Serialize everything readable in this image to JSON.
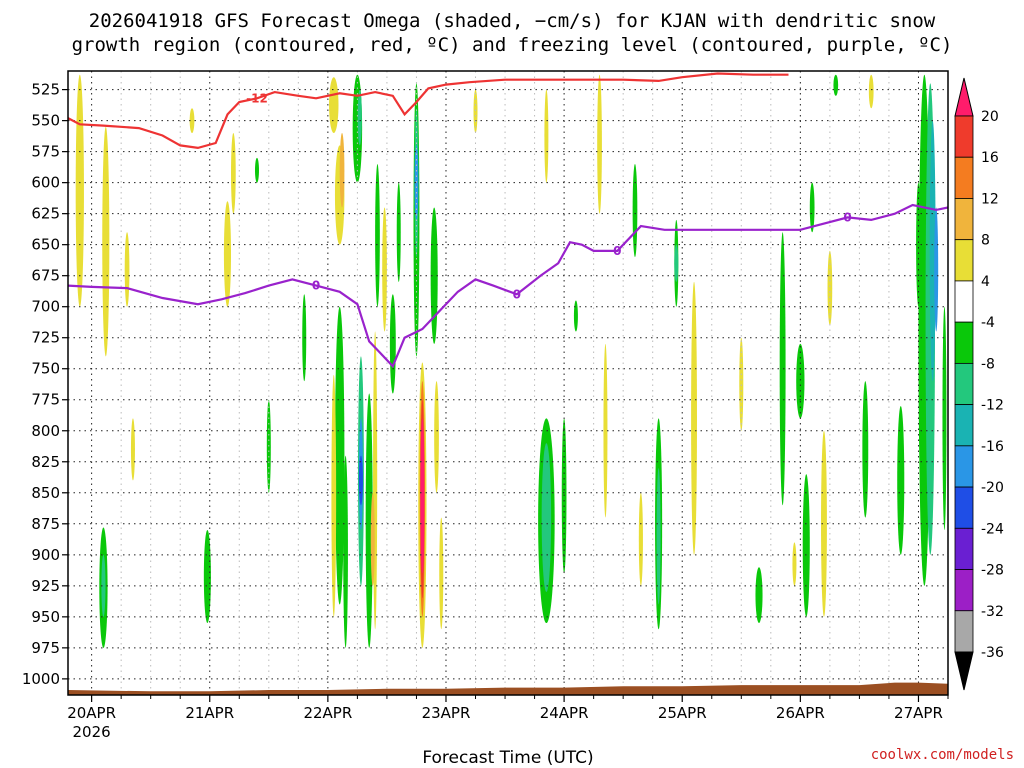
{
  "chart_data": {
    "type": "heatmap",
    "title_lines": [
      "2026041918 GFS Forecast Omega (shaded, −cm/s) for KJAN with dendritic snow",
      "growth region (contoured, red, ºC) and freezing level (contoured, purple, ºC)"
    ],
    "xlabel": "Forecast Time (UTC)",
    "x_ticks": [
      "20APR",
      "21APR",
      "22APR",
      "23APR",
      "24APR",
      "25APR",
      "26APR",
      "27APR"
    ],
    "x_sublabel": "2026",
    "x_range_days": [
      -0.2,
      7.25
    ],
    "y_ticks": [
      525,
      550,
      575,
      600,
      625,
      650,
      675,
      700,
      725,
      750,
      775,
      800,
      825,
      850,
      875,
      900,
      925,
      950,
      975,
      1000
    ],
    "y_range": [
      510,
      1013
    ],
    "y_inverted": true,
    "grid": true,
    "colorbar": {
      "labels": [
        20,
        16,
        12,
        8,
        4,
        -4,
        -8,
        -12,
        -16,
        -20,
        -24,
        -28,
        -32,
        -36
      ],
      "colors": [
        "#ff1c6b",
        "#ef3b2c",
        "#f47c20",
        "#f0b43c",
        "#e8de36",
        "#ffffff",
        "#0ac80a",
        "#23c87d",
        "#1ab3b3",
        "#2a96e6",
        "#1f4ee6",
        "#6a1fd2",
        "#9c1fc6",
        "#a8a8a8",
        "#000000"
      ]
    },
    "contours": [
      {
        "label": "-12",
        "color": "#ee3333",
        "points": [
          [
            -0.2,
            548
          ],
          [
            -0.1,
            553
          ],
          [
            0.1,
            554
          ],
          [
            0.4,
            556
          ],
          [
            0.6,
            562
          ],
          [
            0.75,
            570
          ],
          [
            0.9,
            572
          ],
          [
            1.05,
            568
          ],
          [
            1.15,
            545
          ],
          [
            1.25,
            535
          ],
          [
            1.4,
            532
          ],
          [
            1.55,
            527
          ],
          [
            1.75,
            530
          ],
          [
            1.9,
            532
          ],
          [
            2.1,
            528
          ],
          [
            2.25,
            530
          ],
          [
            2.4,
            527
          ],
          [
            2.55,
            530
          ],
          [
            2.65,
            545
          ],
          [
            2.75,
            535
          ],
          [
            2.85,
            524
          ],
          [
            3.0,
            521
          ],
          [
            3.2,
            519
          ],
          [
            3.5,
            517
          ],
          [
            3.8,
            517
          ],
          [
            4.2,
            517
          ],
          [
            4.5,
            517
          ],
          [
            4.8,
            518
          ],
          [
            5.0,
            515
          ],
          [
            5.3,
            512
          ],
          [
            5.6,
            513
          ],
          [
            5.9,
            513
          ]
        ]
      },
      {
        "label": "0",
        "color": "#9922cc",
        "points": [
          [
            -0.2,
            683
          ],
          [
            0.0,
            684
          ],
          [
            0.3,
            685
          ],
          [
            0.6,
            693
          ],
          [
            0.9,
            698
          ],
          [
            1.1,
            694
          ],
          [
            1.3,
            689
          ],
          [
            1.5,
            683
          ],
          [
            1.7,
            678
          ],
          [
            1.9,
            683
          ],
          [
            2.1,
            688
          ],
          [
            2.25,
            698
          ],
          [
            2.35,
            728
          ],
          [
            2.45,
            738
          ],
          [
            2.55,
            748
          ],
          [
            2.65,
            725
          ],
          [
            2.8,
            718
          ],
          [
            2.95,
            703
          ],
          [
            3.1,
            688
          ],
          [
            3.25,
            678
          ],
          [
            3.4,
            683
          ],
          [
            3.6,
            690
          ],
          [
            3.8,
            675
          ],
          [
            3.95,
            665
          ],
          [
            4.05,
            648
          ],
          [
            4.15,
            650
          ],
          [
            4.25,
            655
          ],
          [
            4.45,
            655
          ],
          [
            4.65,
            635
          ],
          [
            4.85,
            638
          ],
          [
            5.1,
            638
          ],
          [
            5.4,
            638
          ],
          [
            5.8,
            638
          ],
          [
            6.0,
            638
          ],
          [
            6.2,
            633
          ],
          [
            6.4,
            628
          ],
          [
            6.6,
            630
          ],
          [
            6.8,
            625
          ],
          [
            6.95,
            618
          ],
          [
            7.15,
            622
          ],
          [
            7.25,
            620
          ]
        ]
      }
    ],
    "terrain": {
      "color": "#9b4f22",
      "top_pressure": [
        [
          -0.2,
          1009
        ],
        [
          0.5,
          1010
        ],
        [
          1.0,
          1010
        ],
        [
          1.5,
          1009
        ],
        [
          2.0,
          1009
        ],
        [
          2.5,
          1008
        ],
        [
          3.0,
          1008
        ],
        [
          3.5,
          1007
        ],
        [
          4.0,
          1007
        ],
        [
          4.5,
          1006
        ],
        [
          5.0,
          1006
        ],
        [
          5.5,
          1005
        ],
        [
          6.0,
          1005
        ],
        [
          6.5,
          1005
        ],
        [
          6.8,
          1003
        ],
        [
          7.0,
          1003
        ],
        [
          7.25,
          1004
        ]
      ]
    },
    "shaded_regions": [
      {
        "x": -0.1,
        "p0": 513,
        "p1": 700,
        "w": 0.07,
        "color": "#e8de36"
      },
      {
        "x": 0.12,
        "p0": 555,
        "p1": 740,
        "w": 0.06,
        "color": "#e8de36"
      },
      {
        "x": 0.1,
        "p0": 878,
        "p1": 975,
        "w": 0.07,
        "color": "#0ac80a"
      },
      {
        "x": 0.1,
        "p0": 900,
        "p1": 950,
        "w": 0.035,
        "color": "#23c87d"
      },
      {
        "x": 0.3,
        "p0": 640,
        "p1": 700,
        "w": 0.04,
        "color": "#e8de36"
      },
      {
        "x": 0.35,
        "p0": 790,
        "p1": 840,
        "w": 0.03,
        "color": "#e8de36"
      },
      {
        "x": 0.98,
        "p0": 880,
        "p1": 955,
        "w": 0.06,
        "color": "#0ac80a"
      },
      {
        "x": 0.85,
        "p0": 540,
        "p1": 560,
        "w": 0.04,
        "color": "#e8de36"
      },
      {
        "x": 1.15,
        "p0": 615,
        "p1": 700,
        "w": 0.06,
        "color": "#e8de36"
      },
      {
        "x": 1.2,
        "p0": 560,
        "p1": 625,
        "w": 0.04,
        "color": "#e8de36"
      },
      {
        "x": 1.4,
        "p0": 580,
        "p1": 600,
        "w": 0.02,
        "color": "#0ac80a"
      },
      {
        "x": 1.5,
        "p0": 775,
        "p1": 850,
        "w": 0.02,
        "color": "#0ac80a"
      },
      {
        "x": 1.8,
        "p0": 690,
        "p1": 760,
        "w": 0.02,
        "color": "#0ac80a"
      },
      {
        "x": 2.05,
        "p0": 515,
        "p1": 560,
        "w": 0.08,
        "color": "#e8de36"
      },
      {
        "x": 2.1,
        "p0": 570,
        "p1": 650,
        "w": 0.08,
        "color": "#e8de36"
      },
      {
        "x": 2.12,
        "p0": 560,
        "p1": 620,
        "w": 0.04,
        "color": "#f0b43c"
      },
      {
        "x": 2.1,
        "p0": 700,
        "p1": 940,
        "w": 0.08,
        "color": "#0ac80a"
      },
      {
        "x": 2.05,
        "p0": 755,
        "p1": 950,
        "w": 0.04,
        "color": "#e8de36"
      },
      {
        "x": 2.15,
        "p0": 820,
        "p1": 975,
        "w": 0.04,
        "color": "#0ac80a"
      },
      {
        "x": 2.28,
        "p0": 740,
        "p1": 925,
        "w": 0.05,
        "color": "#23c87d"
      },
      {
        "x": 2.28,
        "p0": 790,
        "p1": 880,
        "w": 0.03,
        "color": "#2a96e6"
      },
      {
        "x": 2.28,
        "p0": 820,
        "p1": 860,
        "w": 0.015,
        "color": "#1f4ee6"
      },
      {
        "x": 2.35,
        "p0": 770,
        "p1": 975,
        "w": 0.06,
        "color": "#0ac80a"
      },
      {
        "x": 2.4,
        "p0": 720,
        "p1": 960,
        "w": 0.035,
        "color": "#e8de36"
      },
      {
        "x": 2.38,
        "p0": 850,
        "p1": 925,
        "w": 0.02,
        "color": "#f0b43c"
      },
      {
        "x": 2.25,
        "p0": 513,
        "p1": 600,
        "w": 0.08,
        "color": "#0ac80a"
      },
      {
        "x": 2.27,
        "p0": 525,
        "p1": 570,
        "w": 0.035,
        "color": "#23c87d"
      },
      {
        "x": 2.42,
        "p0": 585,
        "p1": 700,
        "w": 0.04,
        "color": "#0ac80a"
      },
      {
        "x": 2.48,
        "p0": 620,
        "p1": 720,
        "w": 0.04,
        "color": "#e8de36"
      },
      {
        "x": 2.55,
        "p0": 690,
        "p1": 770,
        "w": 0.05,
        "color": "#0ac80a"
      },
      {
        "x": 2.6,
        "p0": 600,
        "p1": 680,
        "w": 0.03,
        "color": "#0ac80a"
      },
      {
        "x": 2.75,
        "p0": 520,
        "p1": 740,
        "w": 0.05,
        "color": "#0ac80a"
      },
      {
        "x": 2.75,
        "p0": 540,
        "p1": 660,
        "w": 0.03,
        "color": "#23c87d"
      },
      {
        "x": 2.75,
        "p0": 570,
        "p1": 630,
        "w": 0.015,
        "color": "#2a96e6"
      },
      {
        "x": 2.9,
        "p0": 620,
        "p1": 730,
        "w": 0.06,
        "color": "#0ac80a"
      },
      {
        "x": 2.8,
        "p0": 745,
        "p1": 975,
        "w": 0.07,
        "color": "#e8de36"
      },
      {
        "x": 2.8,
        "p0": 760,
        "p1": 950,
        "w": 0.045,
        "color": "#f47c20"
      },
      {
        "x": 2.8,
        "p0": 775,
        "p1": 935,
        "w": 0.03,
        "color": "#ef3b2c"
      },
      {
        "x": 2.8,
        "p0": 790,
        "p1": 915,
        "w": 0.018,
        "color": "#ff1c6b"
      },
      {
        "x": 2.92,
        "p0": 760,
        "p1": 850,
        "w": 0.04,
        "color": "#e8de36"
      },
      {
        "x": 2.96,
        "p0": 870,
        "p1": 960,
        "w": 0.02,
        "color": "#e8de36"
      },
      {
        "x": 3.25,
        "p0": 525,
        "p1": 560,
        "w": 0.025,
        "color": "#e8de36"
      },
      {
        "x": 3.85,
        "p0": 525,
        "p1": 600,
        "w": 0.03,
        "color": "#e8de36"
      },
      {
        "x": 3.85,
        "p0": 790,
        "p1": 955,
        "w": 0.14,
        "color": "#0ac80a"
      },
      {
        "x": 3.85,
        "p0": 810,
        "p1": 930,
        "w": 0.08,
        "color": "#23c87d"
      },
      {
        "x": 4.0,
        "p0": 790,
        "p1": 915,
        "w": 0.04,
        "color": "#0ac80a"
      },
      {
        "x": 4.3,
        "p0": 513,
        "p1": 625,
        "w": 0.04,
        "color": "#e8de36"
      },
      {
        "x": 4.1,
        "p0": 695,
        "p1": 720,
        "w": 0.015,
        "color": "#0ac80a"
      },
      {
        "x": 4.35,
        "p0": 730,
        "p1": 870,
        "w": 0.03,
        "color": "#e8de36"
      },
      {
        "x": 4.6,
        "p0": 585,
        "p1": 660,
        "w": 0.04,
        "color": "#0ac80a"
      },
      {
        "x": 4.65,
        "p0": 850,
        "p1": 925,
        "w": 0.035,
        "color": "#e8de36"
      },
      {
        "x": 4.8,
        "p0": 790,
        "p1": 960,
        "w": 0.06,
        "color": "#0ac80a"
      },
      {
        "x": 4.8,
        "p0": 830,
        "p1": 940,
        "w": 0.03,
        "color": "#23c87d"
      },
      {
        "x": 4.95,
        "p0": 630,
        "p1": 700,
        "w": 0.03,
        "color": "#0ac80a"
      },
      {
        "x": 4.95,
        "p0": 650,
        "p1": 680,
        "w": 0.015,
        "color": "#23c87d"
      },
      {
        "x": 5.1,
        "p0": 680,
        "p1": 900,
        "w": 0.05,
        "color": "#e8de36"
      },
      {
        "x": 5.5,
        "p0": 725,
        "p1": 800,
        "w": 0.02,
        "color": "#e8de36"
      },
      {
        "x": 5.65,
        "p0": 910,
        "p1": 955,
        "w": 0.06,
        "color": "#0ac80a"
      },
      {
        "x": 5.85,
        "p0": 640,
        "p1": 860,
        "w": 0.05,
        "color": "#0ac80a"
      },
      {
        "x": 5.95,
        "p0": 890,
        "p1": 925,
        "w": 0.03,
        "color": "#e8de36"
      },
      {
        "x": 6.0,
        "p0": 730,
        "p1": 790,
        "w": 0.07,
        "color": "#0ac80a"
      },
      {
        "x": 6.05,
        "p0": 835,
        "p1": 950,
        "w": 0.06,
        "color": "#0ac80a"
      },
      {
        "x": 6.1,
        "p0": 600,
        "p1": 640,
        "w": 0.04,
        "color": "#0ac80a"
      },
      {
        "x": 6.25,
        "p0": 655,
        "p1": 715,
        "w": 0.04,
        "color": "#e8de36"
      },
      {
        "x": 6.2,
        "p0": 800,
        "p1": 950,
        "w": 0.05,
        "color": "#e8de36"
      },
      {
        "x": 6.3,
        "p0": 513,
        "p1": 530,
        "w": 0.04,
        "color": "#0ac80a"
      },
      {
        "x": 6.6,
        "p0": 513,
        "p1": 540,
        "w": 0.04,
        "color": "#e8de36"
      },
      {
        "x": 6.55,
        "p0": 760,
        "p1": 870,
        "w": 0.05,
        "color": "#0ac80a"
      },
      {
        "x": 6.85,
        "p0": 780,
        "p1": 900,
        "w": 0.06,
        "color": "#0ac80a"
      },
      {
        "x": 7.0,
        "p0": 600,
        "p1": 700,
        "w": 0.04,
        "color": "#0ac80a"
      },
      {
        "x": 7.05,
        "p0": 513,
        "p1": 925,
        "w": 0.1,
        "color": "#0ac80a"
      },
      {
        "x": 7.1,
        "p0": 520,
        "p1": 900,
        "w": 0.08,
        "color": "#23c87d"
      },
      {
        "x": 7.12,
        "p0": 550,
        "p1": 760,
        "w": 0.05,
        "color": "#1ab3b3"
      },
      {
        "x": 7.15,
        "p0": 620,
        "p1": 720,
        "w": 0.03,
        "color": "#2a96e6"
      },
      {
        "x": 7.22,
        "p0": 700,
        "p1": 880,
        "w": 0.03,
        "color": "#0ac80a"
      }
    ]
  },
  "credit": "coolwx.com/models"
}
